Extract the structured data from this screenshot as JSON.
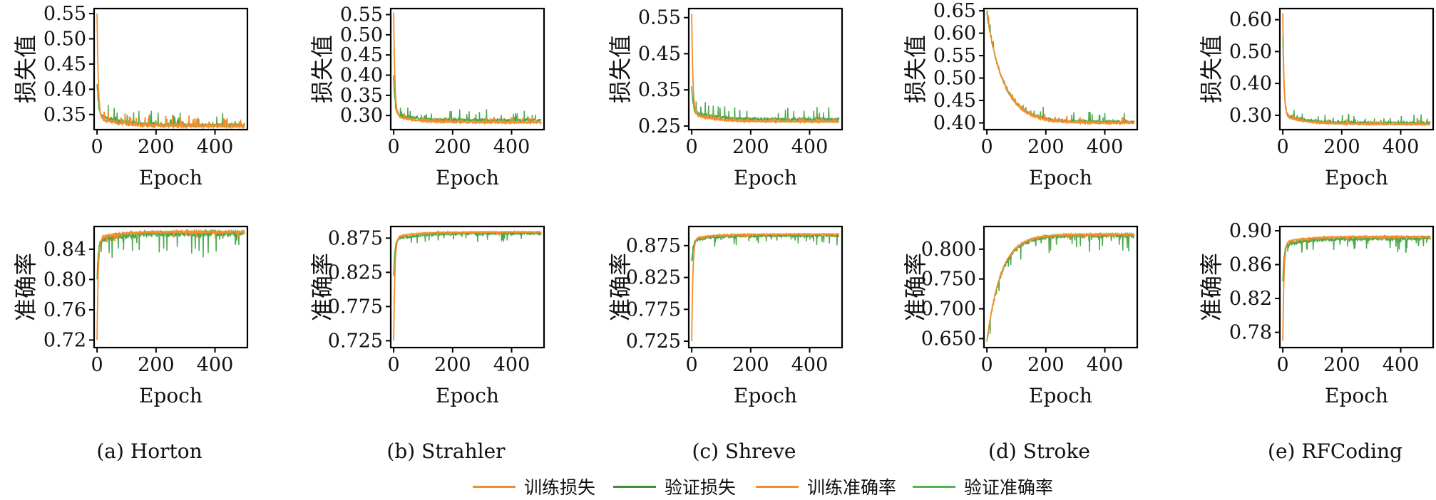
{
  "colors": {
    "train": "#F28E2B",
    "val": "#4CA84C"
  },
  "legend": {
    "items": [
      {
        "label": "训练损失",
        "color": "#F28E2B"
      },
      {
        "label": "验证损失",
        "color": "#3E8F3E"
      },
      {
        "label": "训练准确率",
        "color": "#F28E2B"
      },
      {
        "label": "验证准确率",
        "color": "#56B356"
      }
    ]
  },
  "chart_data": [
    {
      "type": "line",
      "caption": "(a) Horton",
      "loss": {
        "ylabel": "损失值",
        "xlabel": "Epoch",
        "xlim": [
          -10,
          510
        ],
        "ylim": [
          0.32,
          0.56
        ],
        "yticks": [
          0.35,
          0.4,
          0.45,
          0.5,
          0.55
        ],
        "ytick_labels": [
          "0.35",
          "0.40",
          "0.45",
          "0.50",
          "0.55"
        ],
        "xticks": [
          0,
          200,
          400
        ],
        "xtick_labels": [
          "0",
          "200",
          "400"
        ],
        "series": [
          {
            "name": "训练损失",
            "start": 0.55,
            "end": 0.327,
            "knee": 0.345,
            "rate": 4.0,
            "spike": 0.01
          },
          {
            "name": "验证损失",
            "start": 0.41,
            "end": 0.329,
            "knee": 0.352,
            "rate": 4.0,
            "spike": 0.012
          }
        ]
      },
      "acc": {
        "ylabel": "准确率",
        "xlabel": "Epoch",
        "xlim": [
          -10,
          510
        ],
        "ylim": [
          0.71,
          0.87
        ],
        "yticks": [
          0.72,
          0.76,
          0.8,
          0.84
        ],
        "ytick_labels": [
          "0.72",
          "0.76",
          "0.80",
          "0.84"
        ],
        "xticks": [
          0,
          200,
          400
        ],
        "xtick_labels": [
          "0",
          "200",
          "400"
        ],
        "series": [
          {
            "name": "训练准确率",
            "start": 0.72,
            "end": 0.863,
            "knee": 0.855,
            "rate": 4.0,
            "spike": 0.004
          },
          {
            "name": "验证准确率",
            "start": 0.8,
            "end": 0.861,
            "knee": 0.85,
            "rate": 4.0,
            "spike": 0.014
          }
        ]
      }
    },
    {
      "type": "line",
      "caption": "(b) Strahler",
      "loss": {
        "ylabel": "损失值",
        "xlabel": "Epoch",
        "xlim": [
          -10,
          510
        ],
        "ylim": [
          0.265,
          0.565
        ],
        "yticks": [
          0.3,
          0.35,
          0.4,
          0.45,
          0.5,
          0.55
        ],
        "ytick_labels": [
          "0.30",
          "0.35",
          "0.40",
          "0.45",
          "0.50",
          "0.55"
        ],
        "xticks": [
          0,
          200,
          400
        ],
        "xtick_labels": [
          "0",
          "200",
          "400"
        ],
        "series": [
          {
            "name": "训练损失",
            "start": 0.555,
            "end": 0.283,
            "knee": 0.3,
            "rate": 4.0,
            "spike": 0.006
          },
          {
            "name": "验证损失",
            "start": 0.4,
            "end": 0.288,
            "knee": 0.305,
            "rate": 4.0,
            "spike": 0.012
          }
        ]
      },
      "acc": {
        "ylabel": "准确率",
        "xlabel": "Epoch",
        "xlim": [
          -10,
          510
        ],
        "ylim": [
          0.715,
          0.892
        ],
        "yticks": [
          0.725,
          0.775,
          0.825,
          0.875
        ],
        "ytick_labels": [
          "0.725",
          "0.775",
          "0.825",
          "0.875"
        ],
        "xticks": [
          0,
          200,
          400
        ],
        "xtick_labels": [
          "0",
          "200",
          "400"
        ],
        "series": [
          {
            "name": "训练准确率",
            "start": 0.725,
            "end": 0.884,
            "knee": 0.876,
            "rate": 4.0,
            "spike": 0.002
          },
          {
            "name": "验证准确率",
            "start": 0.82,
            "end": 0.882,
            "knee": 0.872,
            "rate": 4.0,
            "spike": 0.006
          }
        ]
      }
    },
    {
      "type": "line",
      "caption": "(c) Shreve",
      "loss": {
        "ylabel": "损失值",
        "xlabel": "Epoch",
        "xlim": [
          -10,
          510
        ],
        "ylim": [
          0.24,
          0.575
        ],
        "yticks": [
          0.25,
          0.35,
          0.45,
          0.55
        ],
        "ytick_labels": [
          "0.25",
          "0.35",
          "0.45",
          "0.55"
        ],
        "xticks": [
          0,
          200,
          400
        ],
        "xtick_labels": [
          "0",
          "200",
          "400"
        ],
        "series": [
          {
            "name": "训练损失",
            "start": 0.56,
            "end": 0.262,
            "knee": 0.285,
            "rate": 4.0,
            "spike": 0.006
          },
          {
            "name": "验证损失",
            "start": 0.36,
            "end": 0.268,
            "knee": 0.29,
            "rate": 4.0,
            "spike": 0.016
          }
        ]
      },
      "acc": {
        "ylabel": "准确率",
        "xlabel": "Epoch",
        "xlim": [
          -10,
          510
        ],
        "ylim": [
          0.715,
          0.905
        ],
        "yticks": [
          0.725,
          0.775,
          0.825,
          0.875
        ],
        "ytick_labels": [
          "0.725",
          "0.775",
          "0.825",
          "0.875"
        ],
        "xticks": [
          0,
          200,
          400
        ],
        "xtick_labels": [
          "0",
          "200",
          "400"
        ],
        "series": [
          {
            "name": "训练准确率",
            "start": 0.725,
            "end": 0.893,
            "knee": 0.886,
            "rate": 4.0,
            "spike": 0.002
          },
          {
            "name": "验证准确率",
            "start": 0.85,
            "end": 0.891,
            "knee": 0.882,
            "rate": 4.0,
            "spike": 0.007
          }
        ]
      }
    },
    {
      "type": "line",
      "caption": "(d) Stroke",
      "loss": {
        "ylabel": "损失值",
        "xlabel": "Epoch",
        "xlim": [
          -10,
          510
        ],
        "ylim": [
          0.385,
          0.655
        ],
        "yticks": [
          0.4,
          0.45,
          0.5,
          0.55,
          0.6,
          0.65
        ],
        "ytick_labels": [
          "0.40",
          "0.45",
          "0.50",
          "0.55",
          "0.60",
          "0.65"
        ],
        "xticks": [
          0,
          200,
          400
        ],
        "xtick_labels": [
          "0",
          "200",
          "400"
        ],
        "series": [
          {
            "name": "训练损失",
            "start": 0.645,
            "end": 0.4,
            "knee": 0.44,
            "rate": 55,
            "spike": 0.006
          },
          {
            "name": "验证损失",
            "start": 0.64,
            "end": 0.402,
            "knee": 0.445,
            "rate": 55,
            "spike": 0.012
          }
        ]
      },
      "acc": {
        "ylabel": "准确率",
        "xlabel": "Epoch",
        "xlim": [
          -10,
          510
        ],
        "ylim": [
          0.635,
          0.838
        ],
        "yticks": [
          0.65,
          0.7,
          0.75,
          0.8
        ],
        "ytick_labels": [
          "0.650",
          "0.700",
          "0.750",
          "0.800"
        ],
        "xticks": [
          0,
          200,
          400
        ],
        "xtick_labels": [
          "0",
          "200",
          "400"
        ],
        "series": [
          {
            "name": "训练准确率",
            "start": 0.645,
            "end": 0.825,
            "knee": 0.8,
            "rate": 45,
            "spike": 0.003
          },
          {
            "name": "验证准确率",
            "start": 0.645,
            "end": 0.823,
            "knee": 0.795,
            "rate": 45,
            "spike": 0.012
          }
        ]
      }
    },
    {
      "type": "line",
      "caption": "(e) RFCoding",
      "loss": {
        "ylabel": "损失值",
        "xlabel": "Epoch",
        "xlim": [
          -10,
          510
        ],
        "ylim": [
          0.255,
          0.635
        ],
        "yticks": [
          0.3,
          0.4,
          0.5,
          0.6
        ],
        "ytick_labels": [
          "0.30",
          "0.40",
          "0.50",
          "0.60"
        ],
        "xticks": [
          0,
          200,
          400
        ],
        "xtick_labels": [
          "0",
          "200",
          "400"
        ],
        "series": [
          {
            "name": "训练损失",
            "start": 0.62,
            "end": 0.272,
            "knee": 0.3,
            "rate": 4.0,
            "spike": 0.006
          },
          {
            "name": "验证损失",
            "start": 0.55,
            "end": 0.276,
            "knee": 0.305,
            "rate": 4.0,
            "spike": 0.012
          }
        ]
      },
      "acc": {
        "ylabel": "准确率",
        "xlabel": "Epoch",
        "xlim": [
          -10,
          510
        ],
        "ylim": [
          0.762,
          0.905
        ],
        "yticks": [
          0.78,
          0.82,
          0.86,
          0.9
        ],
        "ytick_labels": [
          "0.78",
          "0.82",
          "0.86",
          "0.90"
        ],
        "xticks": [
          0,
          200,
          400
        ],
        "xtick_labels": [
          "0",
          "200",
          "400"
        ],
        "series": [
          {
            "name": "训练准确率",
            "start": 0.77,
            "end": 0.893,
            "knee": 0.886,
            "rate": 4.0,
            "spike": 0.002
          },
          {
            "name": "验证准确率",
            "start": 0.84,
            "end": 0.891,
            "knee": 0.882,
            "rate": 4.0,
            "spike": 0.008
          }
        ]
      }
    }
  ]
}
